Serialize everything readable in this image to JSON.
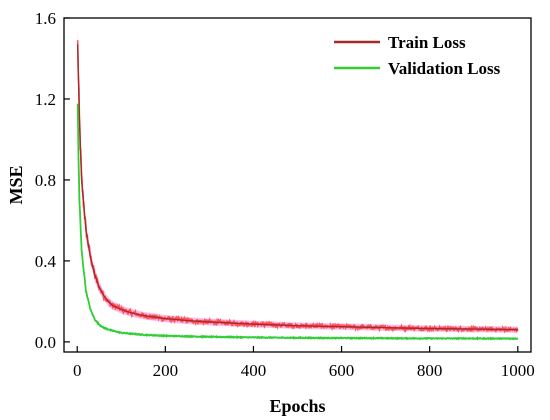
{
  "chart_data": {
    "type": "line",
    "xlabel": "Epochs",
    "ylabel": "MSE",
    "xlim": [
      -30,
      1030
    ],
    "ylim": [
      -0.05,
      1.6
    ],
    "xticks": [
      0,
      200,
      400,
      600,
      800,
      1000
    ],
    "yticks": [
      0.0,
      0.4,
      0.8,
      1.2,
      1.6
    ],
    "xtick_labels": [
      "0",
      "200",
      "400",
      "600",
      "800",
      "1000"
    ],
    "ytick_labels": [
      "0.0",
      "0.4",
      "0.8",
      "1.2",
      "1.6"
    ],
    "legend_position": "top-right",
    "grid": false,
    "series": [
      {
        "name": "Train Loss",
        "color": "#a52a2a",
        "noise_color": "#ff3d3d",
        "band_color": "#ff66cc",
        "x": [
          1,
          5,
          10,
          20,
          30,
          40,
          50,
          60,
          70,
          80,
          100,
          120,
          150,
          200,
          250,
          300,
          400,
          500,
          600,
          700,
          800,
          900,
          1000
        ],
        "values": [
          1.47,
          1.1,
          0.8,
          0.55,
          0.42,
          0.33,
          0.27,
          0.23,
          0.2,
          0.18,
          0.16,
          0.145,
          0.13,
          0.115,
          0.105,
          0.098,
          0.088,
          0.08,
          0.075,
          0.07,
          0.066,
          0.063,
          0.06
        ]
      },
      {
        "name": "Validation Loss",
        "color": "#33cc33",
        "band_color": "#a6f2e6",
        "x": [
          1,
          3,
          5,
          10,
          20,
          30,
          40,
          50,
          60,
          80,
          100,
          150,
          200,
          300,
          400,
          500,
          600,
          700,
          800,
          900,
          1000
        ],
        "values": [
          1.18,
          0.9,
          0.7,
          0.45,
          0.25,
          0.16,
          0.11,
          0.085,
          0.07,
          0.055,
          0.045,
          0.035,
          0.03,
          0.025,
          0.022,
          0.02,
          0.019,
          0.018,
          0.017,
          0.017,
          0.016
        ]
      }
    ]
  }
}
